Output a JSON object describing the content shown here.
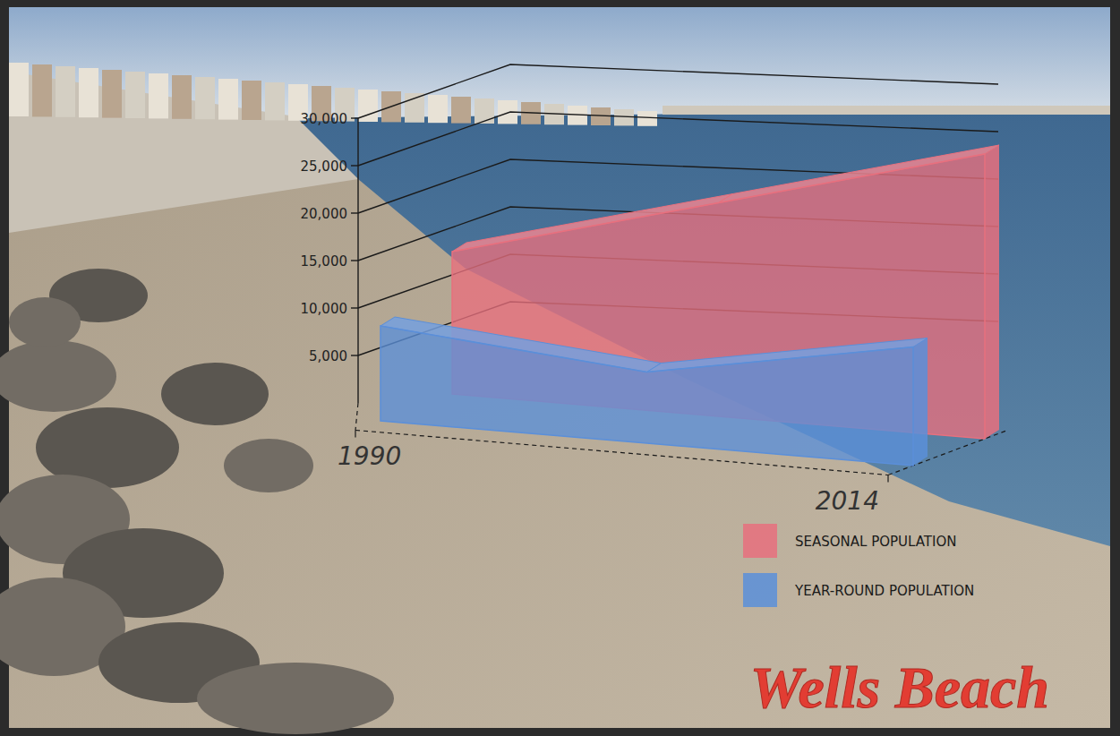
{
  "chart_data": {
    "type": "area",
    "title": "Wells Beach",
    "x": [
      1990,
      2002,
      2014
    ],
    "xlim": [
      1990,
      2014
    ],
    "xticks": [
      1990,
      2014
    ],
    "ylim": [
      0,
      30000
    ],
    "yticks": [
      {
        "value": 5000,
        "label": "5,000"
      },
      {
        "value": 10000,
        "label": "10,000"
      },
      {
        "value": 15000,
        "label": "15,000"
      },
      {
        "value": 20000,
        "label": "20,000"
      },
      {
        "value": 25000,
        "label": "25,000"
      },
      {
        "value": 30000,
        "label": "30,000"
      }
    ],
    "series": [
      {
        "name": "SEASONAL POPULATION",
        "color": "#e8707e",
        "values": [
          15000,
          22500,
          30000
        ]
      },
      {
        "name": "YEAR-ROUND POPULATION",
        "color": "#5b8fd9",
        "values": [
          10000,
          7500,
          12500
        ]
      }
    ],
    "grid": true,
    "legend": "lower right"
  }
}
